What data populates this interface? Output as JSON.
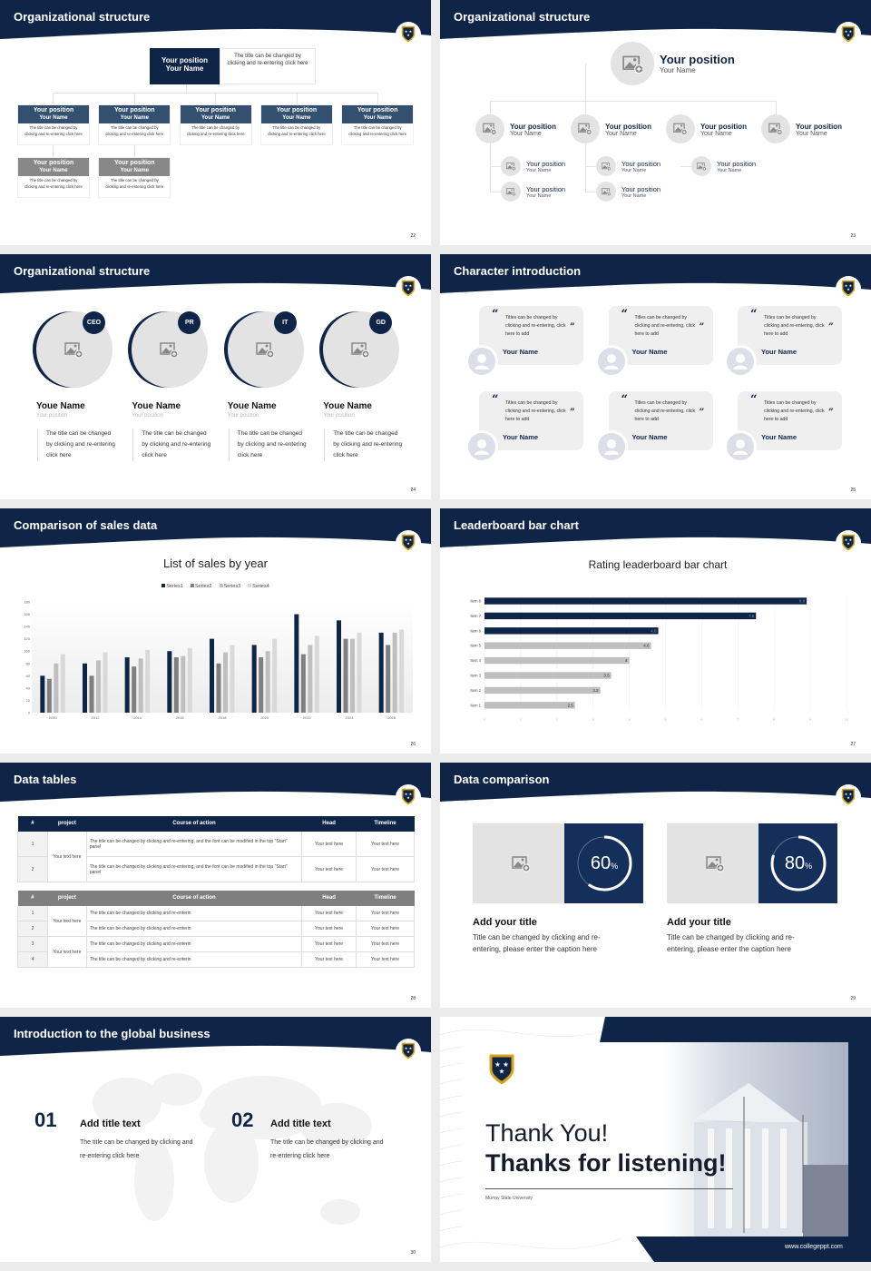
{
  "colors": {
    "navy": "#0f2548",
    "navy_box": "#34506f",
    "gray_box": "#888888",
    "placeholder": "#e4e3e3"
  },
  "s22": {
    "title": "Organizational structure",
    "page": "22",
    "top": {
      "position": "Your position",
      "name": "Your Name",
      "desc": "The title can be changed by clicking and re-entering click here"
    },
    "row1": [
      {
        "position": "Your position",
        "name": "Your Name",
        "desc": "The title can be changed by clicking and re-entering click here"
      },
      {
        "position": "Your position",
        "name": "Your Name",
        "desc": "The title can be changed by clicking and re-entering click here"
      },
      {
        "position": "Your position",
        "name": "Your Name",
        "desc": "The title can be changed by clicking and re-entering click here"
      },
      {
        "position": "Your position",
        "name": "Your Name",
        "desc": "The title can be changed by clicking and re-entering click here"
      },
      {
        "position": "Your position",
        "name": "Your Name",
        "desc": "The title can be changed by clicking and re-entering click here"
      }
    ],
    "row2": [
      {
        "position": "Your position",
        "name": "Your Name",
        "desc": "The title can be changed by clicking and re-entering click here"
      },
      {
        "position": "Your position",
        "name": "Your Name",
        "desc": "The title can be changed by clicking and re-entering click here"
      }
    ]
  },
  "s23": {
    "title": "Organizational structure",
    "page": "23",
    "top": {
      "position": "Your position",
      "name": "Your Name"
    },
    "mid": [
      {
        "position": "Your position",
        "name": "Your Name"
      },
      {
        "position": "Your position",
        "name": "Your Name"
      },
      {
        "position": "Your position",
        "name": "Your Name"
      },
      {
        "position": "Your position",
        "name": "Your Name"
      }
    ],
    "sub": [
      {
        "position": "Your position",
        "name": "Your Name"
      },
      {
        "position": "Your position",
        "name": "Your Name"
      },
      {
        "position": "Your position",
        "name": "Your Name"
      },
      {
        "position": "Your position",
        "name": "Your Name"
      },
      {
        "position": "Your position",
        "name": "Your Name"
      }
    ]
  },
  "s24": {
    "title": "Organizational structure",
    "page": "24",
    "members": [
      {
        "badge": "CEO",
        "name": "Youe Name",
        "position": "Your position",
        "desc": "The title can be changed by clicking and re-entering click here"
      },
      {
        "badge": "PR",
        "name": "Youe Name",
        "position": "Your position",
        "desc": "The title can be changed by clicking and re-entering click here"
      },
      {
        "badge": "IT",
        "name": "Youe Name",
        "position": "Your position",
        "desc": "The title can be changed by clicking and re-entering click here"
      },
      {
        "badge": "GD",
        "name": "Youe Name",
        "position": "Your position",
        "desc": "The title can be changed by clicking and re-entering click here"
      }
    ]
  },
  "s25": {
    "title": "Character introduction",
    "page": "25",
    "cards": [
      {
        "quote": "Titles can be changed by clicking and re-entering, click here to add",
        "name": "Your Name"
      },
      {
        "quote": "Titles can be changed by clicking and re-entering, click here to add",
        "name": "Your Name"
      },
      {
        "quote": "Titles can be changed by clicking and re-entering, click here to add",
        "name": "Your Name"
      },
      {
        "quote": "Titles can be changed by clicking and re-entering, click here to add",
        "name": "Your Name"
      },
      {
        "quote": "Titles can be changed by clicking and re-entering, click here to add",
        "name": "Your Name"
      },
      {
        "quote": "Titles can be changed by clicking and re-entering, click here to add",
        "name": "Your Name"
      }
    ]
  },
  "s26": {
    "title": "Comparison of sales data",
    "page": "26"
  },
  "s27": {
    "title": "Leaderboard bar chart",
    "page": "27"
  },
  "chart_data": [
    {
      "type": "bar",
      "title": "List of sales by year",
      "legend": "top",
      "categories": [
        "2010",
        "2012",
        "2014",
        "2016",
        "2018",
        "2020",
        "2022",
        "2024",
        "2026"
      ],
      "series": [
        {
          "name": "Series1",
          "color": "#0f2548",
          "values": [
            60,
            80,
            90,
            100,
            120,
            110,
            160,
            150,
            130
          ]
        },
        {
          "name": "Series2",
          "color": "#7f7f7f",
          "values": [
            55,
            60,
            75,
            90,
            80,
            90,
            95,
            120,
            110
          ]
        },
        {
          "name": "Series3",
          "color": "#bfbfbf",
          "values": [
            80,
            85,
            88,
            92,
            98,
            100,
            110,
            120,
            130
          ]
        },
        {
          "name": "Series4",
          "color": "#d9d9d9",
          "values": [
            95,
            98,
            102,
            105,
            110,
            120,
            125,
            130,
            135
          ]
        }
      ],
      "ylim": [
        0,
        180
      ],
      "yticks": [
        "0",
        "20",
        "40",
        "60",
        "80",
        "100",
        "120",
        "140",
        "160",
        "180"
      ]
    },
    {
      "type": "bar",
      "orientation": "horizontal",
      "title": "Rating leaderboard bar chart",
      "categories": [
        "Item 8",
        "Item 7",
        "Item 6",
        "Item 5",
        "Item 4",
        "Item 3",
        "Item 2",
        "Item 1"
      ],
      "values": [
        8.9,
        7.5,
        4.8,
        4.6,
        4,
        3.5,
        3.2,
        2.5
      ],
      "labels": [
        "8.9",
        "7.5",
        "4.8",
        "4.6",
        "4",
        "3.5",
        "3.2",
        "2.5"
      ],
      "highlight_color": "#0f2548",
      "color": "#bfbfbf",
      "xlim": [
        0,
        10
      ],
      "xticks": [
        "0",
        "1",
        "2",
        "3",
        "4",
        "5",
        "6",
        "7",
        "8",
        "9",
        "10"
      ],
      "grid": true
    }
  ],
  "s28": {
    "title": "Data tables",
    "page": "28",
    "header": [
      "#",
      "project",
      "Course of action",
      "Head",
      "Timeline"
    ],
    "t1": {
      "project": "Your text here",
      "rows": [
        {
          "n": "1",
          "action": "The title can be changed by clicking and re-entering, and the font can be modified in the top \"Start\" panel",
          "head": "Your text here",
          "time": "Your text here"
        },
        {
          "n": "2",
          "action": "The title can be changed by clicking and re-entering, and the font can be modified in the top \"Start\" panel",
          "head": "Your text here",
          "time": "Your text here"
        }
      ]
    },
    "t2": {
      "projects": [
        "Your text here",
        "Your text here"
      ],
      "rows": [
        {
          "n": "1",
          "action": "The title can be changed by clicking and re-enterin",
          "head": "Your text here",
          "time": "Your text here"
        },
        {
          "n": "2",
          "action": "The title can be changed by clicking and re-enterin",
          "head": "Your text here",
          "time": "Your text here"
        },
        {
          "n": "3",
          "action": "The title can be changed by clicking and re-enterin",
          "head": "Your text here",
          "time": "Your text here"
        },
        {
          "n": "4",
          "action": "The title can be changed by clicking and re-enterin",
          "head": "Your text here",
          "time": "Your text here"
        }
      ]
    }
  },
  "s29": {
    "title": "Data comparison",
    "page": "29",
    "cards": [
      {
        "percent": 60,
        "value": "60",
        "unit": "%",
        "title": "Add your title",
        "desc": "Title can be changed by clicking and re-entering, please enter the caption here"
      },
      {
        "percent": 80,
        "value": "80",
        "unit": "%",
        "title": "Add your title",
        "desc": "Title can be changed by clicking and re-entering, please enter the caption here"
      }
    ]
  },
  "s30": {
    "title": "Introduction to the global business",
    "page": "30",
    "items": [
      {
        "num": "01",
        "title": "Add title text",
        "desc": "The title can be changed by clicking and re-entering click here"
      },
      {
        "num": "02",
        "title": "Add title text",
        "desc": "The title can be changed by clicking and re-entering click here"
      }
    ]
  },
  "s31": {
    "thanks": "Thank You!",
    "listening": "Thanks for listening!",
    "university": "Murray State University",
    "url": "www.collegeppt.com"
  }
}
